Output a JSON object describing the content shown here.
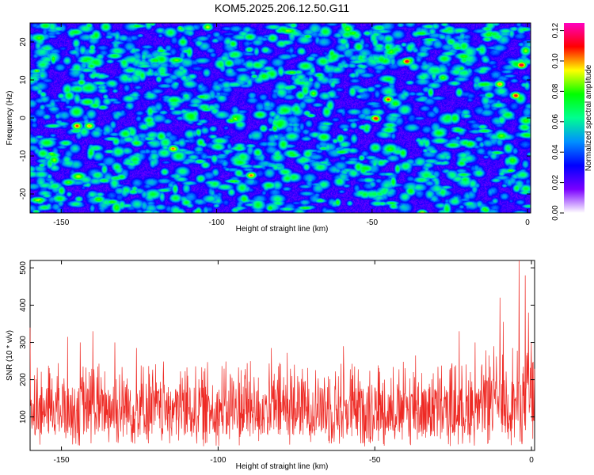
{
  "title": "KOM5.2025.206.12.50.G11",
  "chart_data": [
    {
      "type": "heatmap",
      "xlabel": "Height of straight line (km)",
      "ylabel": "Frequency (Hz)",
      "xlim": [
        -160,
        1
      ],
      "ylim": [
        -25,
        25
      ],
      "xticks": [
        -150,
        -100,
        -50,
        0
      ],
      "yticks": [
        -20,
        -10,
        0,
        10,
        20
      ],
      "colorbar": {
        "label": "Normalized spectral amplitude",
        "range": [
          0,
          0.125
        ],
        "ticks": [
          "0.00",
          "0.02",
          "0.04",
          "0.06",
          "0.08",
          "0.10",
          "0.12"
        ],
        "colors": [
          "#ffffff",
          "#7a00ff",
          "#0000ff",
          "#0090ff",
          "#00ff90",
          "#00ff00",
          "#ffff00",
          "#ff0000",
          "#ff00c0"
        ]
      },
      "description_values": {
        "background_level": 0.03,
        "typical_peak_level": 0.06,
        "max_level": 0.12,
        "strong_peaks": [
          {
            "x": -145,
            "y": -2,
            "v": 0.12
          },
          {
            "x": -141,
            "y": -2,
            "v": 0.11
          },
          {
            "x": -114,
            "y": -8,
            "v": 0.11
          },
          {
            "x": -89,
            "y": -15,
            "v": 0.11
          },
          {
            "x": -49,
            "y": 0,
            "v": 0.12
          },
          {
            "x": -45,
            "y": 5,
            "v": 0.11
          },
          {
            "x": -39,
            "y": 15,
            "v": 0.11
          },
          {
            "x": -34,
            "y": -25,
            "v": 0.11
          },
          {
            "x": -9,
            "y": 9,
            "v": 0.11
          },
          {
            "x": -4,
            "y": 6,
            "v": 0.12
          },
          {
            "x": -2,
            "y": 14,
            "v": 0.12
          },
          {
            "x": -103,
            "y": 24,
            "v": 0.1
          }
        ]
      }
    },
    {
      "type": "line",
      "xlabel": "Height of straight line (km)",
      "ylabel": "SNR (10 * v/v)",
      "xlim": [
        -160,
        1
      ],
      "ylim": [
        10,
        520
      ],
      "xticks": [
        -150,
        -100,
        -50,
        0
      ],
      "yticks": [
        100,
        200,
        300,
        400,
        500
      ],
      "color": "#ee2a24",
      "baseline": 115,
      "noise_range": [
        20,
        250
      ],
      "spikes": [
        {
          "x": -160,
          "y": 340
        },
        {
          "x": -148,
          "y": 315
        },
        {
          "x": -144,
          "y": 300
        },
        {
          "x": -140,
          "y": 330
        },
        {
          "x": -133,
          "y": 300
        },
        {
          "x": -126,
          "y": 285
        },
        {
          "x": -83,
          "y": 285
        },
        {
          "x": -78,
          "y": 272
        },
        {
          "x": -60,
          "y": 290
        },
        {
          "x": -37,
          "y": 265
        },
        {
          "x": -23,
          "y": 330
        },
        {
          "x": -18,
          "y": 300
        },
        {
          "x": -12,
          "y": 290
        },
        {
          "x": -10,
          "y": 420
        },
        {
          "x": -9,
          "y": 355
        },
        {
          "x": -6,
          "y": 285
        },
        {
          "x": -4,
          "y": 520
        },
        {
          "x": -2,
          "y": 480
        },
        {
          "x": -1,
          "y": 380
        },
        {
          "x": 0,
          "y": 300
        }
      ]
    }
  ]
}
